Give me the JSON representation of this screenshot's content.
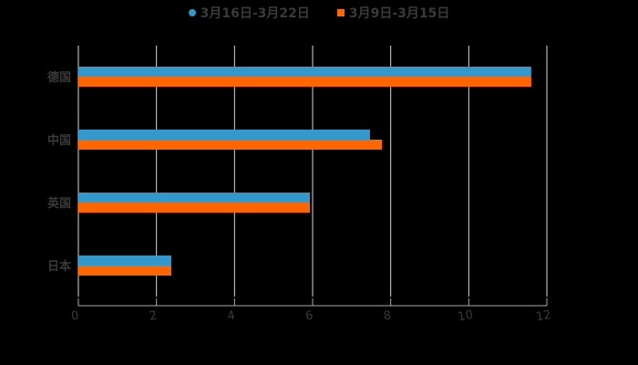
{
  "chart_data": {
    "type": "bar",
    "orientation": "horizontal",
    "title": "",
    "categories": [
      "德国",
      "中国",
      "英国",
      "日本"
    ],
    "series": [
      {
        "name": "3月16日-3月22日",
        "color": "#3399cc",
        "values": [
          11.6,
          7.47,
          5.93,
          2.38
        ]
      },
      {
        "name": "3月9日-3月15日",
        "color": "#ff6600",
        "values": [
          11.6,
          7.78,
          5.93,
          2.38
        ]
      }
    ],
    "xlabel": "",
    "ylabel": "",
    "xlim": [
      0,
      12
    ],
    "xticks": [
      "0",
      "2",
      "4",
      "6",
      "8",
      "10",
      "12"
    ],
    "grid": true,
    "legend_position": "top"
  },
  "legend": {
    "items": [
      {
        "label": "3月16日-3月22日",
        "color": "#3399cc"
      },
      {
        "label": "3月9日-3月15日",
        "color": "#ff6600"
      }
    ]
  }
}
